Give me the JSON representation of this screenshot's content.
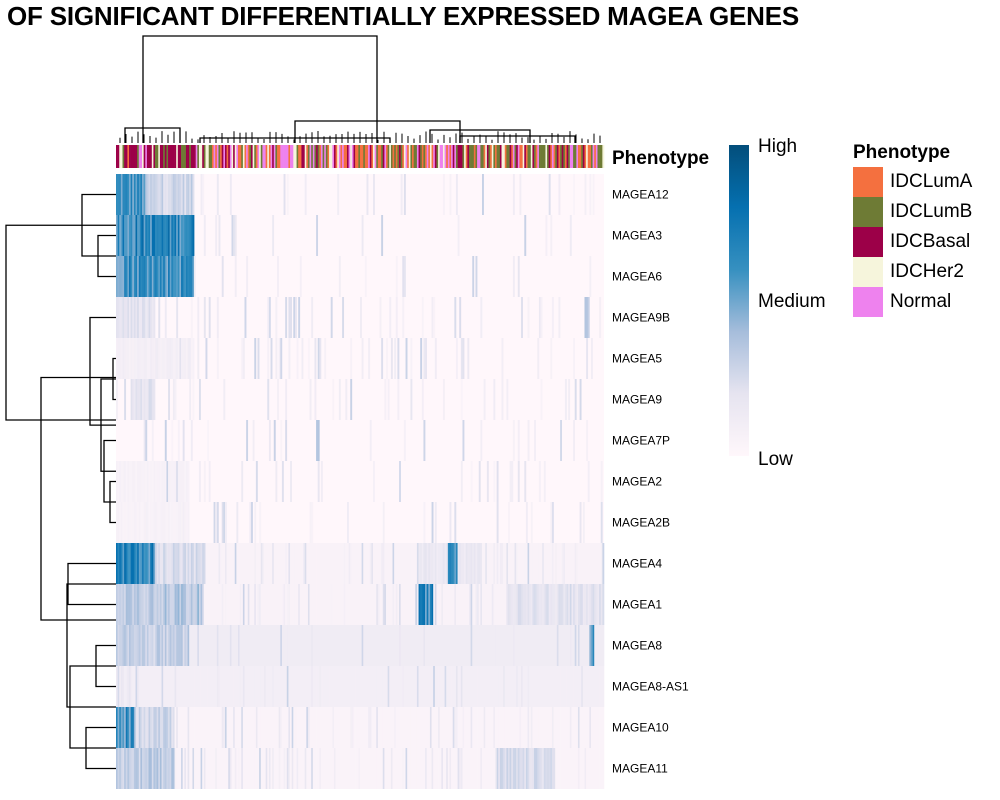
{
  "chart_data": {
    "type": "heatmap",
    "title": "OF SIGNIFICANT DIFFERENTIALLY EXPRESSED MAGEA GENES",
    "rows": [
      "MAGEA12",
      "MAGEA3",
      "MAGEA6",
      "MAGEA9B",
      "MAGEA5",
      "MAGEA9",
      "MAGEA7P",
      "MAGEA2",
      "MAGEA2B",
      "MAGEA4",
      "MAGEA1",
      "MAGEA8",
      "MAGEA8-AS1",
      "MAGEA10",
      "MAGEA11"
    ],
    "column_annotation": {
      "name": "Phenotype",
      "categories": [
        "IDCLumA",
        "IDCLumB",
        "IDCBasal",
        "IDCHer2",
        "Normal"
      ],
      "colors": [
        "#f4703f",
        "#6e7b35",
        "#9c0048",
        "#f6f5dc",
        "#ee82ee"
      ]
    },
    "colorbar": {
      "labels": [
        "High",
        "Medium",
        "Low"
      ],
      "colors": [
        "#fff7fb",
        "#e6e4f0",
        "#a6bddb",
        "#3690c0",
        "#0570b0",
        "#034e7b"
      ]
    },
    "row_profiles": [
      {
        "base": 0.03,
        "hot": [
          [
            0,
            0.06,
            0.75
          ],
          [
            0.06,
            0.16,
            0.35
          ]
        ],
        "noise": 0.05
      },
      {
        "base": 0.02,
        "hot": [
          [
            0,
            0.16,
            0.85
          ]
        ],
        "noise": 0.03
      },
      {
        "base": 0.02,
        "hot": [
          [
            0,
            0.16,
            0.8
          ]
        ],
        "noise": 0.03
      },
      {
        "base": 0.02,
        "hot": [
          [
            0,
            0.08,
            0.25
          ],
          [
            0.96,
            0.97,
            0.45
          ]
        ],
        "noise": 0.06
      },
      {
        "base": 0.02,
        "hot": [
          [
            0,
            0.15,
            0.12
          ]
        ],
        "noise": 0.08
      },
      {
        "base": 0.02,
        "hot": [
          [
            0.03,
            0.08,
            0.25
          ]
        ],
        "noise": 0.05
      },
      {
        "base": 0.02,
        "hot": [
          [
            0.41,
            0.415,
            0.45
          ]
        ],
        "noise": 0.05
      },
      {
        "base": 0.03,
        "hot": [
          [
            0,
            0.15,
            0.08
          ]
        ],
        "noise": 0.05
      },
      {
        "base": 0.03,
        "hot": [
          [
            0,
            0.15,
            0.08
          ]
        ],
        "noise": 0.06
      },
      {
        "base": 0.05,
        "hot": [
          [
            0,
            0.08,
            0.85
          ],
          [
            0.08,
            0.18,
            0.3
          ],
          [
            0.68,
            0.7,
            0.8
          ],
          [
            0.62,
            0.75,
            0.2
          ]
        ],
        "noise": 0.1
      },
      {
        "base": 0.05,
        "hot": [
          [
            0,
            0.18,
            0.45
          ],
          [
            0.62,
            0.65,
            0.85
          ],
          [
            0.8,
            1.0,
            0.25
          ]
        ],
        "noise": 0.1
      },
      {
        "base": 0.12,
        "hot": [
          [
            0,
            0.15,
            0.4
          ],
          [
            0.97,
            0.98,
            0.8
          ]
        ],
        "noise": 0.08
      },
      {
        "base": 0.1,
        "hot": [
          [
            0,
            0.05,
            0.15
          ]
        ],
        "noise": 0.06
      },
      {
        "base": 0.04,
        "hot": [
          [
            0,
            0.04,
            0.75
          ],
          [
            0.04,
            0.12,
            0.35
          ]
        ],
        "noise": 0.07
      },
      {
        "base": 0.04,
        "hot": [
          [
            0,
            0.12,
            0.4
          ],
          [
            0.78,
            0.9,
            0.3
          ]
        ],
        "noise": 0.09
      }
    ]
  }
}
